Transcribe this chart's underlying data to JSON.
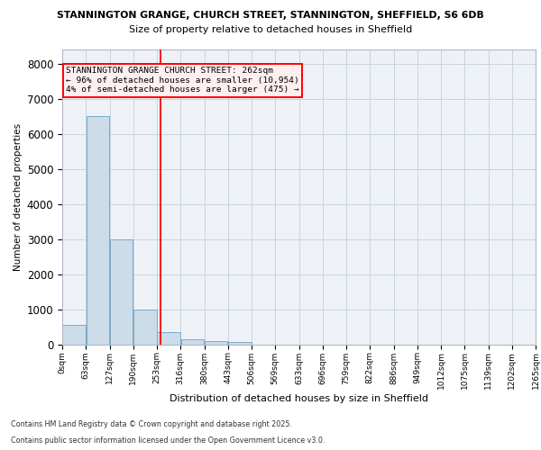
{
  "title_line1": "STANNINGTON GRANGE, CHURCH STREET, STANNINGTON, SHEFFIELD, S6 6DB",
  "title_line2": "Size of property relative to detached houses in Sheffield",
  "xlabel": "Distribution of detached houses by size in Sheffield",
  "ylabel": "Number of detached properties",
  "bar_color": "#ccdce8",
  "bar_edge_color": "#7aaac8",
  "annotation_box_text": "STANNINGTON GRANGE CHURCH STREET: 262sqm\n← 96% of detached houses are smaller (10,954)\n4% of semi-detached houses are larger (475) →",
  "annotation_box_facecolor": "#fff0f0",
  "annotation_box_edge_color": "red",
  "vline_color": "red",
  "vline_x": 262,
  "footer_line1": "Contains HM Land Registry data © Crown copyright and database right 2025.",
  "footer_line2": "Contains public sector information licensed under the Open Government Licence v3.0.",
  "bins": [
    0,
    63,
    127,
    190,
    253,
    316,
    380,
    443,
    506,
    569,
    633,
    696,
    759,
    822,
    886,
    949,
    1012,
    1075,
    1139,
    1202,
    1265
  ],
  "bin_labels": [
    "0sqm",
    "63sqm",
    "127sqm",
    "190sqm",
    "253sqm",
    "316sqm",
    "380sqm",
    "443sqm",
    "506sqm",
    "569sqm",
    "633sqm",
    "696sqm",
    "759sqm",
    "822sqm",
    "886sqm",
    "949sqm",
    "1012sqm",
    "1075sqm",
    "1139sqm",
    "1202sqm",
    "1265sqm"
  ],
  "bar_heights": [
    550,
    6500,
    2980,
    980,
    340,
    150,
    100,
    60,
    0,
    0,
    0,
    0,
    0,
    0,
    0,
    0,
    0,
    0,
    0,
    0
  ],
  "ylim": [
    0,
    8400
  ],
  "yticks": [
    0,
    1000,
    2000,
    3000,
    4000,
    5000,
    6000,
    7000,
    8000
  ],
  "background_color": "#eef2f7",
  "grid_color": "#c8d4e0",
  "fig_bg": "#ffffff"
}
